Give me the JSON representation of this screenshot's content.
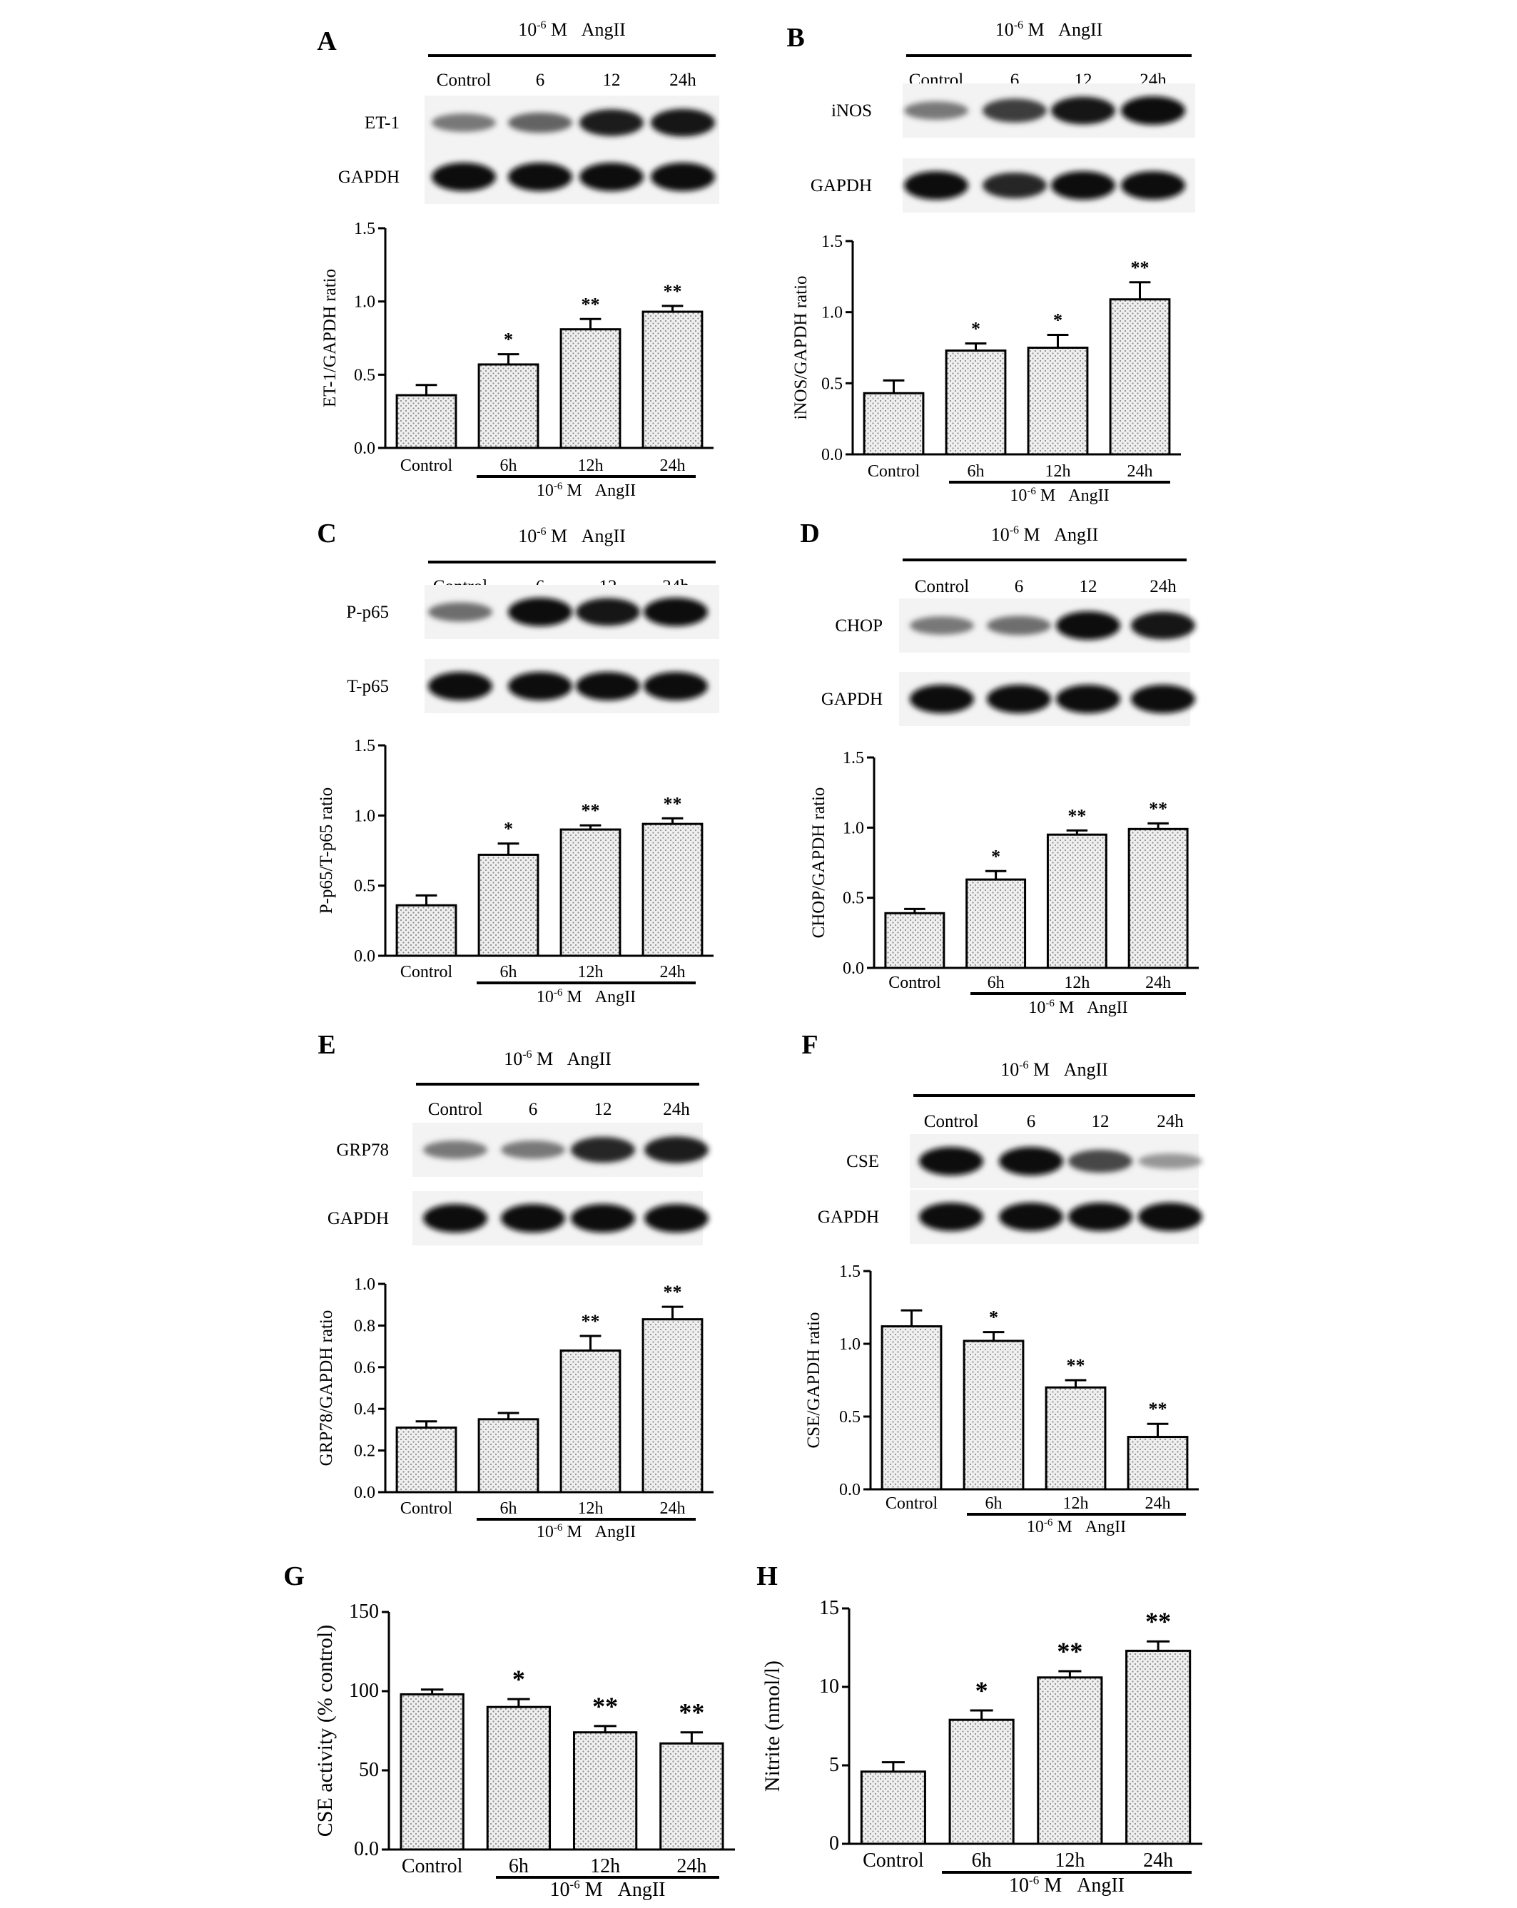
{
  "common": {
    "treatment": "10⁻⁶ M  AngII",
    "blot_lanes": [
      "Control",
      "6",
      "12",
      "24h"
    ],
    "chart_categories": [
      "Control",
      "6h",
      "12h",
      "24h"
    ]
  },
  "panels": [
    {
      "id": "A",
      "blot_bands": [
        "ET-1",
        "GAPDH"
      ],
      "band_intensity": [
        [
          0.45,
          0.55,
          0.9,
          0.95
        ],
        [
          1,
          1,
          1,
          1
        ]
      ],
      "chart_data": {
        "type": "bar",
        "categories": [
          "Control",
          "6h",
          "12h",
          "24h"
        ],
        "values": [
          0.36,
          0.57,
          0.81,
          0.93
        ],
        "errors": [
          0.07,
          0.07,
          0.07,
          0.04
        ],
        "significance": [
          "",
          "*",
          "**",
          "**"
        ],
        "ylabel": "ET-1/GAPDH ratio",
        "yticks": [
          "0.0",
          "0.5",
          "1.0",
          "1.5"
        ],
        "ylim": [
          0,
          1.5
        ],
        "group_label": "10⁻⁶ M  AngII"
      }
    },
    {
      "id": "B",
      "blot_bands": [
        "iNOS",
        "GAPDH"
      ],
      "band_intensity": [
        [
          0.45,
          0.75,
          0.95,
          1
        ],
        [
          1,
          0.85,
          1,
          1
        ]
      ],
      "chart_data": {
        "type": "bar",
        "categories": [
          "Control",
          "6h",
          "12h",
          "24h"
        ],
        "values": [
          0.43,
          0.73,
          0.75,
          1.09
        ],
        "errors": [
          0.09,
          0.05,
          0.09,
          0.12
        ],
        "significance": [
          "",
          "*",
          "*",
          "**"
        ],
        "ylabel": "iNOS/GAPDH ratio",
        "yticks": [
          "0.0",
          "0.5",
          "1.0",
          "1.5"
        ],
        "ylim": [
          0,
          1.5
        ],
        "group_label": "10⁻⁶ M  AngII"
      }
    },
    {
      "id": "C",
      "blot_bands": [
        "P-p65",
        "T-p65"
      ],
      "band_intensity": [
        [
          0.5,
          1,
          0.95,
          1
        ],
        [
          1,
          1,
          1,
          1
        ]
      ],
      "chart_data": {
        "type": "bar",
        "categories": [
          "Control",
          "6h",
          "12h",
          "24h"
        ],
        "values": [
          0.36,
          0.72,
          0.9,
          0.94
        ],
        "errors": [
          0.07,
          0.08,
          0.03,
          0.04
        ],
        "significance": [
          "",
          "*",
          "**",
          "**"
        ],
        "ylabel": "P-p65/T-p65 ratio",
        "yticks": [
          "0.0",
          "0.5",
          "1.0",
          "1.5"
        ],
        "ylim": [
          0,
          1.5
        ],
        "group_label": "10⁻⁶ M  AngII"
      }
    },
    {
      "id": "D",
      "blot_bands": [
        "CHOP",
        "GAPDH"
      ],
      "band_intensity": [
        [
          0.45,
          0.5,
          1,
          0.95
        ],
        [
          1,
          1,
          1,
          1
        ]
      ],
      "chart_data": {
        "type": "bar",
        "categories": [
          "Control",
          "6h",
          "12h",
          "24h"
        ],
        "values": [
          0.39,
          0.63,
          0.95,
          0.99
        ],
        "errors": [
          0.03,
          0.06,
          0.03,
          0.04
        ],
        "significance": [
          "",
          "*",
          "**",
          "**"
        ],
        "ylabel": "CHOP/GAPDH ratio",
        "yticks": [
          "0.0",
          "0.5",
          "1.0",
          "1.5"
        ],
        "ylim": [
          0,
          1.5
        ],
        "group_label": "10⁻⁶ M  AngII"
      }
    },
    {
      "id": "E",
      "blot_bands": [
        "GRP78",
        "GAPDH"
      ],
      "band_intensity": [
        [
          0.45,
          0.45,
          0.85,
          0.9
        ],
        [
          1,
          1,
          1,
          1
        ]
      ],
      "chart_data": {
        "type": "bar",
        "categories": [
          "Control",
          "6h",
          "12h",
          "24h"
        ],
        "values": [
          0.31,
          0.35,
          0.68,
          0.83
        ],
        "errors": [
          0.03,
          0.03,
          0.07,
          0.06
        ],
        "significance": [
          "",
          "",
          "**",
          "**"
        ],
        "ylabel": "GRP78/GAPDH ratio",
        "yticks": [
          "0.0",
          "0.2",
          "0.4",
          "0.6",
          "0.8",
          "1.0"
        ],
        "ylim": [
          0,
          1.0
        ],
        "group_label": "10⁻⁶ M  AngII"
      }
    },
    {
      "id": "F",
      "blot_bands": [
        "CSE",
        "GAPDH"
      ],
      "band_intensity": [
        [
          1,
          1,
          0.7,
          0.3
        ],
        [
          1,
          1,
          1,
          1
        ]
      ],
      "chart_data": {
        "type": "bar",
        "categories": [
          "Control",
          "6h",
          "12h",
          "24h"
        ],
        "values": [
          1.12,
          1.02,
          0.7,
          0.36
        ],
        "errors": [
          0.11,
          0.06,
          0.05,
          0.09
        ],
        "significance": [
          "",
          "*",
          "**",
          "**"
        ],
        "ylabel": "CSE/GAPDH ratio",
        "yticks": [
          "0.0",
          "0.5",
          "1.0",
          "1.5"
        ],
        "ylim": [
          0,
          1.5
        ],
        "group_label": "10⁻⁶ M  AngII"
      }
    },
    {
      "id": "G",
      "blot_bands": [],
      "band_intensity": [],
      "chart_data": {
        "type": "bar",
        "categories": [
          "Control",
          "6h",
          "12h",
          "24h"
        ],
        "values": [
          98,
          90,
          74,
          67
        ],
        "errors": [
          3,
          5,
          4,
          7
        ],
        "significance": [
          "",
          "*",
          "**",
          "**"
        ],
        "ylabel": "CSE activity  (% control)",
        "yticks": [
          "0.0",
          "50",
          "100",
          "150"
        ],
        "ylim": [
          0,
          150
        ],
        "group_label": "10⁻⁶ M  AngII"
      }
    },
    {
      "id": "H",
      "blot_bands": [],
      "band_intensity": [],
      "chart_data": {
        "type": "bar",
        "categories": [
          "Control",
          "6h",
          "12h",
          "24h"
        ],
        "values": [
          4.6,
          7.9,
          10.6,
          12.3
        ],
        "errors": [
          0.6,
          0.6,
          0.4,
          0.6
        ],
        "significance": [
          "",
          "*",
          "**",
          "**"
        ],
        "ylabel": "Nitrite  (nmol/l)",
        "yticks": [
          "0",
          "5",
          "10",
          "15"
        ],
        "ylim": [
          0,
          15
        ],
        "group_label": "10⁻⁶ M  AngII"
      }
    }
  ],
  "colors": {
    "bar_fill": "#efefef",
    "dots": "#8c8c8c",
    "ink": "#000000",
    "band": "#111111"
  }
}
